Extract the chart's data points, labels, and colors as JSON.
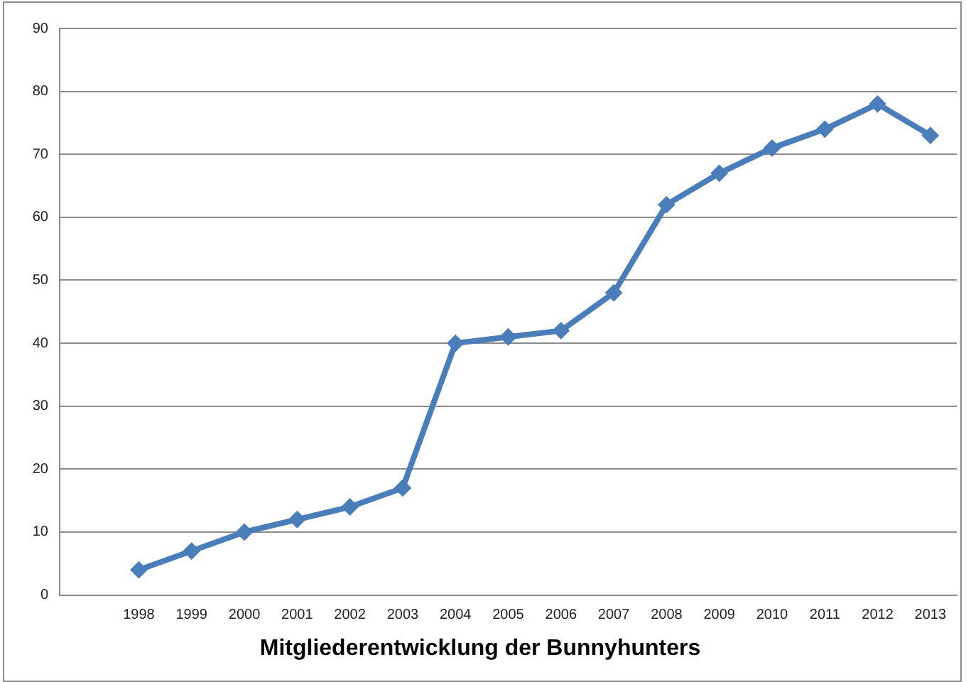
{
  "chart_data": {
    "type": "line",
    "title": "Mitgliederentwicklung der Bunnyhunters",
    "categories": [
      null,
      "1998",
      "1999",
      "2000",
      "2001",
      "2002",
      "2003",
      "2004",
      "2005",
      "2006",
      "2007",
      "2008",
      "2009",
      "2010",
      "2011",
      "2012",
      "2013"
    ],
    "series": [
      {
        "color": "#4a7ebb",
        "values": [
          null,
          4,
          7,
          10,
          12,
          14,
          17,
          40,
          41,
          42,
          48,
          62,
          67,
          71,
          74,
          78,
          73
        ]
      }
    ],
    "ylim": [
      0,
      90
    ],
    "yticks": [
      0,
      10,
      20,
      30,
      40,
      50,
      60,
      70,
      80,
      90
    ],
    "grid": "y",
    "marker": "diamond",
    "line_style": "solid"
  }
}
